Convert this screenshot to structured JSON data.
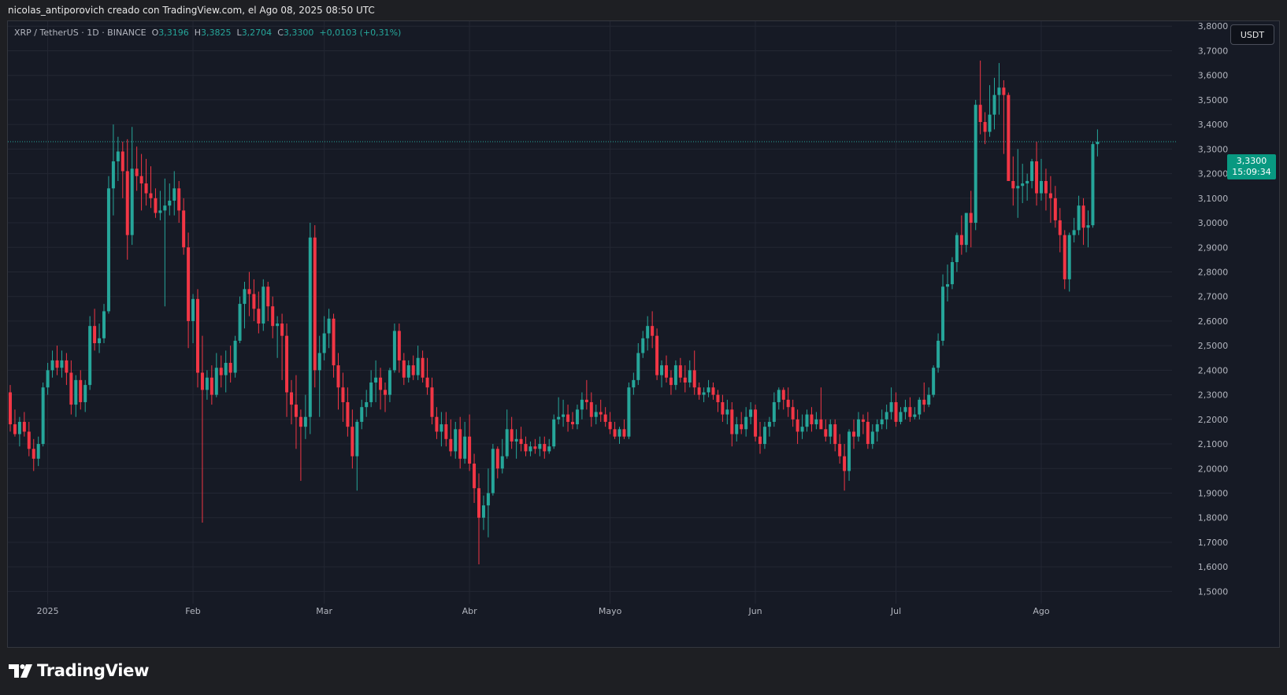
{
  "header": {
    "attribution": "nicolas_antiporovich creado con TradingView.com, el Ago 08, 2025 08:50 UTC"
  },
  "legend": {
    "symbol": "XRP / TetherUS · 1D · BINANCE",
    "o_label": "O",
    "o_value": "3,3196",
    "h_label": "H",
    "h_value": "3,3825",
    "l_label": "L",
    "l_value": "3,2704",
    "c_label": "C",
    "c_value": "3,3300",
    "change": "+0,0103 (+0,31%)"
  },
  "currency_button": "USDT",
  "last_price": {
    "price": "3,3300",
    "countdown": "15:09:34"
  },
  "branding": {
    "logo_text": "TradingView"
  },
  "colors": {
    "up": "#26a69a",
    "down": "#f23645",
    "grid": "#232733",
    "background": "#161a25",
    "accent": "#089981"
  },
  "chart_data": {
    "type": "candlestick",
    "title": "XRP / TetherUS · 1D · BINANCE",
    "xlabel": "",
    "ylabel": "",
    "ylim": [
      1.45,
      3.82
    ],
    "y_ticks": [
      "1,5000",
      "1,6000",
      "1,7000",
      "1,8000",
      "1,9000",
      "2,0000",
      "2,1000",
      "2,2000",
      "2,3000",
      "2,4000",
      "2,5000",
      "2,6000",
      "2,7000",
      "2,8000",
      "2,9000",
      "3,0000",
      "3,1000",
      "3,2000",
      "3,3000",
      "3,4000",
      "3,5000",
      "3,6000",
      "3,7000",
      "3,8000"
    ],
    "x_ticks": [
      {
        "label": "2025",
        "date": "2025-01-01"
      },
      {
        "label": "Feb",
        "date": "2025-02-01"
      },
      {
        "label": "Mar",
        "date": "2025-03-01"
      },
      {
        "label": "Abr",
        "date": "2025-04-01"
      },
      {
        "label": "Mayo",
        "date": "2025-05-01"
      },
      {
        "label": "Jun",
        "date": "2025-06-01"
      },
      {
        "label": "Jul",
        "date": "2025-07-01"
      },
      {
        "label": "Ago",
        "date": "2025-08-01"
      }
    ],
    "first_date": "2024-12-24",
    "last_price": 3.33,
    "candles": [
      [
        2.31,
        2.34,
        2.15,
        2.18
      ],
      [
        2.18,
        2.24,
        2.13,
        2.14
      ],
      [
        2.14,
        2.21,
        2.09,
        2.19
      ],
      [
        2.19,
        2.23,
        2.13,
        2.15
      ],
      [
        2.15,
        2.19,
        2.05,
        2.08
      ],
      [
        2.08,
        2.12,
        1.99,
        2.04
      ],
      [
        2.04,
        2.13,
        2.01,
        2.1
      ],
      [
        2.1,
        2.35,
        2.09,
        2.33
      ],
      [
        2.33,
        2.43,
        2.3,
        2.4
      ],
      [
        2.4,
        2.48,
        2.37,
        2.44
      ],
      [
        2.44,
        2.5,
        2.38,
        2.41
      ],
      [
        2.41,
        2.48,
        2.37,
        2.44
      ],
      [
        2.44,
        2.47,
        2.34,
        2.39
      ],
      [
        2.39,
        2.44,
        2.22,
        2.26
      ],
      [
        2.26,
        2.38,
        2.21,
        2.36
      ],
      [
        2.36,
        2.4,
        2.24,
        2.27
      ],
      [
        2.27,
        2.36,
        2.23,
        2.34
      ],
      [
        2.34,
        2.62,
        2.32,
        2.58
      ],
      [
        2.58,
        2.65,
        2.48,
        2.51
      ],
      [
        2.51,
        2.59,
        2.47,
        2.53
      ],
      [
        2.53,
        2.67,
        2.51,
        2.64
      ],
      [
        2.64,
        3.19,
        2.63,
        3.14
      ],
      [
        3.14,
        3.4,
        3.03,
        3.25
      ],
      [
        3.25,
        3.35,
        3.17,
        3.29
      ],
      [
        3.29,
        3.33,
        3.1,
        3.21
      ],
      [
        3.21,
        3.34,
        2.85,
        2.95
      ],
      [
        2.95,
        3.39,
        2.91,
        3.22
      ],
      [
        3.22,
        3.31,
        3.13,
        3.19
      ],
      [
        3.19,
        3.28,
        3.05,
        3.16
      ],
      [
        3.16,
        3.26,
        3.07,
        3.12
      ],
      [
        3.12,
        3.23,
        3.06,
        3.1
      ],
      [
        3.1,
        3.14,
        3.02,
        3.04
      ],
      [
        3.04,
        3.13,
        3.01,
        3.05
      ],
      [
        3.05,
        3.18,
        2.66,
        3.07
      ],
      [
        3.07,
        3.16,
        3.03,
        3.09
      ],
      [
        3.09,
        3.21,
        3.03,
        3.14
      ],
      [
        3.14,
        3.17,
        3.0,
        3.05
      ],
      [
        3.05,
        3.1,
        2.87,
        2.9
      ],
      [
        2.9,
        2.96,
        2.49,
        2.6
      ],
      [
        2.6,
        2.71,
        2.51,
        2.69
      ],
      [
        2.69,
        2.73,
        2.33,
        2.39
      ],
      [
        2.39,
        2.54,
        1.78,
        2.32
      ],
      [
        2.32,
        2.4,
        2.28,
        2.37
      ],
      [
        2.37,
        2.42,
        2.26,
        2.3
      ],
      [
        2.3,
        2.47,
        2.29,
        2.41
      ],
      [
        2.41,
        2.46,
        2.33,
        2.38
      ],
      [
        2.38,
        2.48,
        2.31,
        2.43
      ],
      [
        2.43,
        2.5,
        2.35,
        2.39
      ],
      [
        2.39,
        2.54,
        2.37,
        2.52
      ],
      [
        2.52,
        2.7,
        2.51,
        2.67
      ],
      [
        2.67,
        2.76,
        2.57,
        2.73
      ],
      [
        2.73,
        2.8,
        2.62,
        2.71
      ],
      [
        2.71,
        2.77,
        2.6,
        2.65
      ],
      [
        2.65,
        2.72,
        2.55,
        2.59
      ],
      [
        2.59,
        2.77,
        2.56,
        2.74
      ],
      [
        2.74,
        2.76,
        2.6,
        2.66
      ],
      [
        2.66,
        2.7,
        2.53,
        2.58
      ],
      [
        2.58,
        2.62,
        2.45,
        2.59
      ],
      [
        2.59,
        2.63,
        2.36,
        2.54
      ],
      [
        2.54,
        2.59,
        2.21,
        2.31
      ],
      [
        2.31,
        2.36,
        2.18,
        2.26
      ],
      [
        2.26,
        2.38,
        2.08,
        2.21
      ],
      [
        2.21,
        2.24,
        1.95,
        2.17
      ],
      [
        2.17,
        2.3,
        2.12,
        2.21
      ],
      [
        2.21,
        3.0,
        2.14,
        2.94
      ],
      [
        2.94,
        2.99,
        2.33,
        2.4
      ],
      [
        2.4,
        2.54,
        2.21,
        2.47
      ],
      [
        2.47,
        2.62,
        2.44,
        2.55
      ],
      [
        2.55,
        2.65,
        2.49,
        2.61
      ],
      [
        2.61,
        2.63,
        2.37,
        2.42
      ],
      [
        2.42,
        2.47,
        2.24,
        2.33
      ],
      [
        2.33,
        2.39,
        2.19,
        2.27
      ],
      [
        2.27,
        2.33,
        2.13,
        2.17
      ],
      [
        2.17,
        2.24,
        2.0,
        2.05
      ],
      [
        2.05,
        2.2,
        1.91,
        2.19
      ],
      [
        2.19,
        2.28,
        2.16,
        2.25
      ],
      [
        2.25,
        2.32,
        2.21,
        2.27
      ],
      [
        2.27,
        2.4,
        2.25,
        2.35
      ],
      [
        2.35,
        2.44,
        2.27,
        2.37
      ],
      [
        2.37,
        2.41,
        2.24,
        2.32
      ],
      [
        2.32,
        2.35,
        2.23,
        2.3
      ],
      [
        2.3,
        2.41,
        2.27,
        2.4
      ],
      [
        2.4,
        2.59,
        2.39,
        2.56
      ],
      [
        2.56,
        2.59,
        2.39,
        2.44
      ],
      [
        2.44,
        2.47,
        2.34,
        2.37
      ],
      [
        2.37,
        2.44,
        2.35,
        2.42
      ],
      [
        2.42,
        2.46,
        2.36,
        2.38
      ],
      [
        2.38,
        2.5,
        2.36,
        2.45
      ],
      [
        2.45,
        2.48,
        2.35,
        2.37
      ],
      [
        2.37,
        2.45,
        2.3,
        2.33
      ],
      [
        2.33,
        2.37,
        2.18,
        2.21
      ],
      [
        2.21,
        2.25,
        2.12,
        2.15
      ],
      [
        2.15,
        2.23,
        2.09,
        2.18
      ],
      [
        2.18,
        2.23,
        2.09,
        2.12
      ],
      [
        2.12,
        2.2,
        2.05,
        2.07
      ],
      [
        2.07,
        2.19,
        2.04,
        2.16
      ],
      [
        2.16,
        2.21,
        2.0,
        2.04
      ],
      [
        2.04,
        2.19,
        2.02,
        2.13
      ],
      [
        2.13,
        2.22,
        1.99,
        2.02
      ],
      [
        2.02,
        2.06,
        1.86,
        1.92
      ],
      [
        1.92,
        1.98,
        1.61,
        1.8
      ],
      [
        1.8,
        1.89,
        1.75,
        1.85
      ],
      [
        1.85,
        2.0,
        1.72,
        1.9
      ],
      [
        1.9,
        2.1,
        1.89,
        2.08
      ],
      [
        2.08,
        2.09,
        1.96,
        2.0
      ],
      [
        2.0,
        2.12,
        1.98,
        2.05
      ],
      [
        2.05,
        2.24,
        2.04,
        2.16
      ],
      [
        2.16,
        2.21,
        2.08,
        2.11
      ],
      [
        2.11,
        2.16,
        2.04,
        2.12
      ],
      [
        2.12,
        2.17,
        2.07,
        2.1
      ],
      [
        2.1,
        2.13,
        2.05,
        2.07
      ],
      [
        2.07,
        2.11,
        2.05,
        2.09
      ],
      [
        2.09,
        2.12,
        2.06,
        2.08
      ],
      [
        2.08,
        2.13,
        2.05,
        2.1
      ],
      [
        2.1,
        2.13,
        2.04,
        2.07
      ],
      [
        2.07,
        2.12,
        2.06,
        2.09
      ],
      [
        2.09,
        2.22,
        2.08,
        2.2
      ],
      [
        2.2,
        2.29,
        2.18,
        2.21
      ],
      [
        2.21,
        2.28,
        2.17,
        2.22
      ],
      [
        2.22,
        2.26,
        2.15,
        2.19
      ],
      [
        2.19,
        2.23,
        2.16,
        2.18
      ],
      [
        2.18,
        2.26,
        2.16,
        2.24
      ],
      [
        2.24,
        2.31,
        2.2,
        2.28
      ],
      [
        2.28,
        2.36,
        2.24,
        2.27
      ],
      [
        2.27,
        2.31,
        2.17,
        2.21
      ],
      [
        2.21,
        2.26,
        2.18,
        2.23
      ],
      [
        2.23,
        2.28,
        2.19,
        2.22
      ],
      [
        2.22,
        2.25,
        2.17,
        2.19
      ],
      [
        2.19,
        2.23,
        2.14,
        2.16
      ],
      [
        2.16,
        2.19,
        2.12,
        2.13
      ],
      [
        2.13,
        2.17,
        2.1,
        2.16
      ],
      [
        2.16,
        2.2,
        2.12,
        2.13
      ],
      [
        2.13,
        2.35,
        2.12,
        2.33
      ],
      [
        2.33,
        2.39,
        2.3,
        2.36
      ],
      [
        2.36,
        2.51,
        2.34,
        2.47
      ],
      [
        2.47,
        2.56,
        2.45,
        2.53
      ],
      [
        2.53,
        2.62,
        2.48,
        2.58
      ],
      [
        2.58,
        2.64,
        2.49,
        2.54
      ],
      [
        2.54,
        2.57,
        2.36,
        2.38
      ],
      [
        2.38,
        2.44,
        2.33,
        2.42
      ],
      [
        2.42,
        2.46,
        2.35,
        2.37
      ],
      [
        2.37,
        2.4,
        2.3,
        2.34
      ],
      [
        2.34,
        2.44,
        2.32,
        2.42
      ],
      [
        2.42,
        2.45,
        2.35,
        2.37
      ],
      [
        2.37,
        2.42,
        2.31,
        2.35
      ],
      [
        2.35,
        2.44,
        2.33,
        2.4
      ],
      [
        2.4,
        2.48,
        2.3,
        2.33
      ],
      [
        2.33,
        2.35,
        2.28,
        2.3
      ],
      [
        2.3,
        2.33,
        2.27,
        2.31
      ],
      [
        2.31,
        2.36,
        2.29,
        2.33
      ],
      [
        2.33,
        2.35,
        2.28,
        2.3
      ],
      [
        2.3,
        2.32,
        2.23,
        2.27
      ],
      [
        2.27,
        2.3,
        2.19,
        2.22
      ],
      [
        2.22,
        2.28,
        2.18,
        2.24
      ],
      [
        2.24,
        2.27,
        2.09,
        2.14
      ],
      [
        2.14,
        2.21,
        2.11,
        2.18
      ],
      [
        2.18,
        2.23,
        2.14,
        2.16
      ],
      [
        2.16,
        2.25,
        2.13,
        2.21
      ],
      [
        2.21,
        2.27,
        2.18,
        2.24
      ],
      [
        2.24,
        2.26,
        2.11,
        2.13
      ],
      [
        2.13,
        2.19,
        2.06,
        2.1
      ],
      [
        2.1,
        2.19,
        2.08,
        2.17
      ],
      [
        2.17,
        2.21,
        2.13,
        2.19
      ],
      [
        2.19,
        2.31,
        2.17,
        2.27
      ],
      [
        2.27,
        2.33,
        2.24,
        2.32
      ],
      [
        2.32,
        2.33,
        2.24,
        2.28
      ],
      [
        2.28,
        2.33,
        2.21,
        2.25
      ],
      [
        2.25,
        2.28,
        2.17,
        2.2
      ],
      [
        2.2,
        2.24,
        2.1,
        2.15
      ],
      [
        2.15,
        2.22,
        2.12,
        2.17
      ],
      [
        2.17,
        2.24,
        2.15,
        2.22
      ],
      [
        2.22,
        2.25,
        2.15,
        2.18
      ],
      [
        2.18,
        2.23,
        2.16,
        2.2
      ],
      [
        2.2,
        2.33,
        2.18,
        2.16
      ],
      [
        2.16,
        2.2,
        2.11,
        2.13
      ],
      [
        2.13,
        2.2,
        2.1,
        2.18
      ],
      [
        2.18,
        2.2,
        2.07,
        2.1
      ],
      [
        2.1,
        2.14,
        2.02,
        2.05
      ],
      [
        2.05,
        2.1,
        1.91,
        1.99
      ],
      [
        1.99,
        2.16,
        1.95,
        2.15
      ],
      [
        2.15,
        2.2,
        2.08,
        2.13
      ],
      [
        2.13,
        2.23,
        2.11,
        2.2
      ],
      [
        2.2,
        2.22,
        2.14,
        2.19
      ],
      [
        2.19,
        2.23,
        2.08,
        2.1
      ],
      [
        2.1,
        2.18,
        2.08,
        2.15
      ],
      [
        2.15,
        2.2,
        2.11,
        2.18
      ],
      [
        2.18,
        2.24,
        2.16,
        2.2
      ],
      [
        2.2,
        2.26,
        2.16,
        2.23
      ],
      [
        2.23,
        2.33,
        2.2,
        2.27
      ],
      [
        2.27,
        2.31,
        2.17,
        2.19
      ],
      [
        2.19,
        2.25,
        2.18,
        2.23
      ],
      [
        2.23,
        2.28,
        2.2,
        2.25
      ],
      [
        2.25,
        2.29,
        2.19,
        2.21
      ],
      [
        2.21,
        2.25,
        2.2,
        2.22
      ],
      [
        2.22,
        2.29,
        2.2,
        2.28
      ],
      [
        2.28,
        2.35,
        2.23,
        2.26
      ],
      [
        2.26,
        2.33,
        2.25,
        2.3
      ],
      [
        2.3,
        2.42,
        2.29,
        2.41
      ],
      [
        2.41,
        2.55,
        2.39,
        2.52
      ],
      [
        2.52,
        2.79,
        2.5,
        2.74
      ],
      [
        2.74,
        2.83,
        2.68,
        2.75
      ],
      [
        2.75,
        2.86,
        2.73,
        2.84
      ],
      [
        2.84,
        2.96,
        2.8,
        2.95
      ],
      [
        2.95,
        3.03,
        2.87,
        2.91
      ],
      [
        2.91,
        3.04,
        2.88,
        3.04
      ],
      [
        3.04,
        3.13,
        2.9,
        3.0
      ],
      [
        3.0,
        3.5,
        2.97,
        3.48
      ],
      [
        3.48,
        3.66,
        3.36,
        3.41
      ],
      [
        3.41,
        3.45,
        3.32,
        3.37
      ],
      [
        3.37,
        3.56,
        3.35,
        3.44
      ],
      [
        3.44,
        3.59,
        3.38,
        3.52
      ],
      [
        3.52,
        3.65,
        3.44,
        3.55
      ],
      [
        3.55,
        3.58,
        3.28,
        3.52
      ],
      [
        3.52,
        3.53,
        3.19,
        3.17
      ],
      [
        3.17,
        3.27,
        3.07,
        3.14
      ],
      [
        3.14,
        3.3,
        3.02,
        3.15
      ],
      [
        3.15,
        3.24,
        3.08,
        3.16
      ],
      [
        3.16,
        3.2,
        3.09,
        3.17
      ],
      [
        3.17,
        3.26,
        3.14,
        3.25
      ],
      [
        3.25,
        3.33,
        3.07,
        3.12
      ],
      [
        3.12,
        3.26,
        3.09,
        3.17
      ],
      [
        3.17,
        3.22,
        3.05,
        3.12
      ],
      [
        3.12,
        3.19,
        3.0,
        3.1
      ],
      [
        3.1,
        3.15,
        2.98,
        3.01
      ],
      [
        3.01,
        3.06,
        2.88,
        2.95
      ],
      [
        2.95,
        2.97,
        2.73,
        2.77
      ],
      [
        2.77,
        2.96,
        2.72,
        2.95
      ],
      [
        2.95,
        3.02,
        2.92,
        2.97
      ],
      [
        2.97,
        3.11,
        2.95,
        3.07
      ],
      [
        3.07,
        3.1,
        2.91,
        2.98
      ],
      [
        2.98,
        3.05,
        2.9,
        2.99
      ],
      [
        2.99,
        3.33,
        2.98,
        3.32
      ],
      [
        3.32,
        3.38,
        3.27,
        3.33
      ]
    ]
  }
}
